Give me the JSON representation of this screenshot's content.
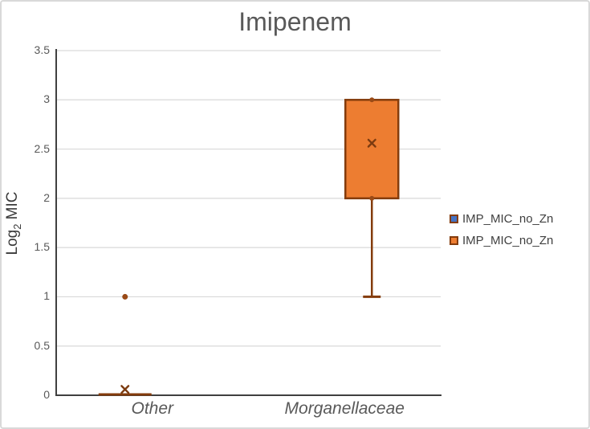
{
  "chart_data": {
    "type": "box",
    "title": "Imipenem",
    "ylabel": {
      "base": "Log",
      "sub": "2",
      "rest": " MIC"
    },
    "ylabel_text": "Log2 MIC",
    "categories": [
      "Other",
      "Morganellaceae"
    ],
    "ylim": [
      0,
      3.5
    ],
    "yticks": [
      0,
      0.5,
      1,
      1.5,
      2,
      2.5,
      3,
      3.5
    ],
    "ytick_labels": [
      "0",
      "0.5",
      "1",
      "1.5",
      "2",
      "2.5",
      "3",
      "3.5"
    ],
    "grid": true,
    "legend_position": "right",
    "legend": [
      {
        "label": "IMP_MIC_no_Zn",
        "fill": "#4472C4",
        "border": "#843C0C"
      },
      {
        "label": "IMP_MIC_no_Zn",
        "fill": "#ED7D31",
        "border": "#843C0C"
      }
    ],
    "colors": {
      "box_fill": "#ED7D31",
      "box_border": "#843C0C",
      "point": "#9A4A16",
      "mean_marker": "#7C3B10",
      "axis": "#404040",
      "grid": "#D9D9D9",
      "tick_text": "#595959",
      "title_text": "#595959",
      "category_text": "#595959",
      "legend_text": "#404040"
    },
    "boxes": [
      {
        "category": "Other",
        "category_index": 0,
        "series_index": 0,
        "q1": 0,
        "median": 0,
        "q3": 0,
        "whisker_low": 0,
        "whisker_high": 0,
        "mean": 0.06,
        "outliers": [
          1
        ],
        "edge_points": []
      },
      {
        "category": "Morganellaceae",
        "category_index": 1,
        "series_index": 1,
        "q1": 2,
        "median": 3,
        "q3": 3,
        "whisker_low": 1,
        "whisker_high": 3,
        "mean": 2.56,
        "outliers": [],
        "edge_points": [
          3,
          2
        ]
      }
    ]
  }
}
